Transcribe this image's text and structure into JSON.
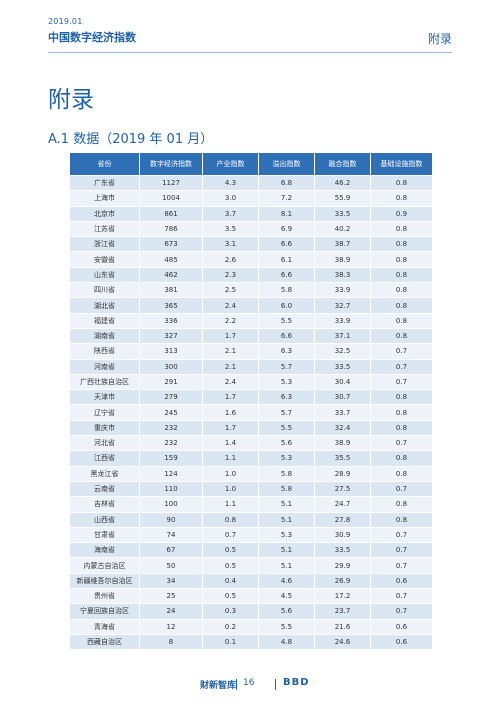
{
  "header": {
    "date": "2019.01",
    "title": "中国数字经济指数",
    "section": "附录"
  },
  "page_title": "附录",
  "section_title": "A.1 数据（2019 年 01 月）",
  "table": {
    "columns": [
      "省份",
      "数字经济指数",
      "产业指数",
      "溢出指数",
      "融合指数",
      "基础设施指数"
    ],
    "rows": [
      [
        "广东省",
        "1127",
        "4.3",
        "6.8",
        "46.2",
        "0.8"
      ],
      [
        "上海市",
        "1004",
        "3.0",
        "7.2",
        "55.9",
        "0.8"
      ],
      [
        "北京市",
        "861",
        "3.7",
        "8.1",
        "33.5",
        "0.9"
      ],
      [
        "江苏省",
        "786",
        "3.5",
        "6.9",
        "40.2",
        "0.8"
      ],
      [
        "浙江省",
        "673",
        "3.1",
        "6.6",
        "38.7",
        "0.8"
      ],
      [
        "安徽省",
        "485",
        "2.6",
        "6.1",
        "38.9",
        "0.8"
      ],
      [
        "山东省",
        "462",
        "2.3",
        "6.6",
        "38.3",
        "0.8"
      ],
      [
        "四川省",
        "381",
        "2.5",
        "5.8",
        "33.9",
        "0.8"
      ],
      [
        "湖北省",
        "365",
        "2.4",
        "6.0",
        "32.7",
        "0.8"
      ],
      [
        "福建省",
        "336",
        "2.2",
        "5.5",
        "33.9",
        "0.8"
      ],
      [
        "湖南省",
        "327",
        "1.7",
        "6.6",
        "37.1",
        "0.8"
      ],
      [
        "陕西省",
        "313",
        "2.1",
        "6.3",
        "32.5",
        "0.7"
      ],
      [
        "河南省",
        "300",
        "2.1",
        "5.7",
        "33.5",
        "0.7"
      ],
      [
        "广西壮族自治区",
        "291",
        "2.4",
        "5.3",
        "30.4",
        "0.7"
      ],
      [
        "天津市",
        "279",
        "1.7",
        "6.3",
        "30.7",
        "0.8"
      ],
      [
        "辽宁省",
        "245",
        "1.6",
        "5.7",
        "33.7",
        "0.8"
      ],
      [
        "重庆市",
        "232",
        "1.7",
        "5.5",
        "32.4",
        "0.8"
      ],
      [
        "河北省",
        "232",
        "1.4",
        "5.6",
        "38.9",
        "0.7"
      ],
      [
        "江西省",
        "159",
        "1.1",
        "5.3",
        "35.5",
        "0.8"
      ],
      [
        "黑龙江省",
        "124",
        "1.0",
        "5.8",
        "28.9",
        "0.8"
      ],
      [
        "云南省",
        "110",
        "1.0",
        "5.8",
        "27.5",
        "0.7"
      ],
      [
        "吉林省",
        "100",
        "1.1",
        "5.1",
        "24.7",
        "0.8"
      ],
      [
        "山西省",
        "90",
        "0.8",
        "5.1",
        "27.8",
        "0.8"
      ],
      [
        "甘肃省",
        "74",
        "0.7",
        "5.3",
        "30.9",
        "0.7"
      ],
      [
        "海南省",
        "67",
        "0.5",
        "5.1",
        "33.5",
        "0.7"
      ],
      [
        "内蒙古自治区",
        "50",
        "0.5",
        "5.1",
        "29.9",
        "0.7"
      ],
      [
        "新疆维吾尔自治区",
        "34",
        "0.4",
        "4.6",
        "26.9",
        "0.6"
      ],
      [
        "贵州省",
        "25",
        "0.5",
        "4.5",
        "17.2",
        "0.7"
      ],
      [
        "宁夏回族自治区",
        "24",
        "0.3",
        "5.6",
        "23.7",
        "0.7"
      ],
      [
        "青海省",
        "12",
        "0.2",
        "5.5",
        "21.6",
        "0.6"
      ],
      [
        "西藏自治区",
        "8",
        "0.1",
        "4.8",
        "24.6",
        "0.6"
      ]
    ]
  },
  "footer": {
    "publisher_logo": "财新智库",
    "page_number": "16",
    "partner_logo": "BBD"
  }
}
